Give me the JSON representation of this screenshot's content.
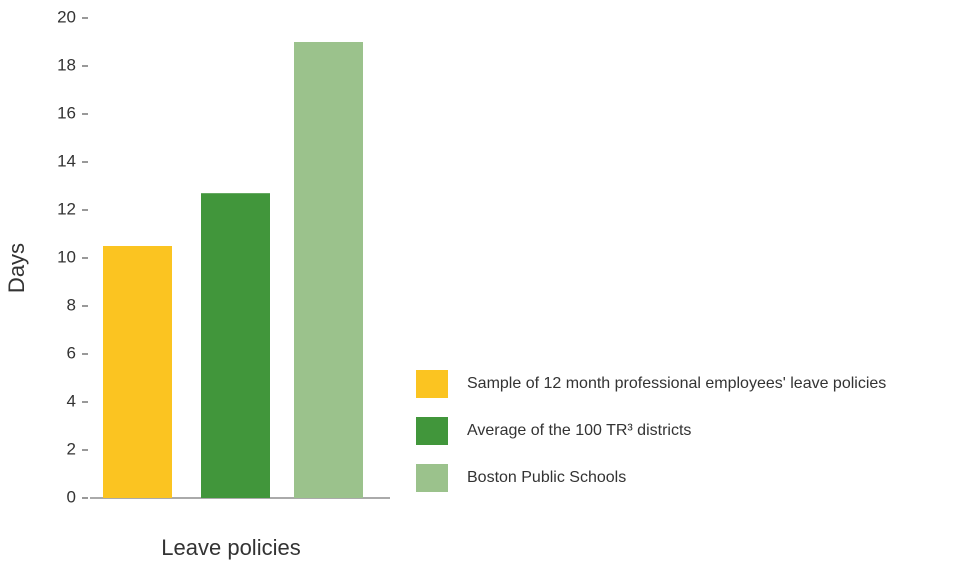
{
  "chart_data": {
    "type": "bar",
    "y_label": "Days",
    "x_label": "Leave policies",
    "series": [
      {
        "name": "Sample of 12 month professional employees' leave policies",
        "color": "#fbc421",
        "values": [
          10.5
        ]
      },
      {
        "name": "Average of the 100 TR³ districts",
        "color": "#41963b",
        "values": [
          12.7
        ]
      },
      {
        "name": "Boston Public Schools",
        "color": "#9bc28c",
        "values": [
          19.0
        ]
      }
    ],
    "ylim": [
      0,
      20
    ],
    "yticks": [
      0,
      2,
      4,
      6,
      8,
      10,
      12,
      14,
      16,
      18,
      20
    ],
    "grid": false,
    "legend": "right"
  }
}
